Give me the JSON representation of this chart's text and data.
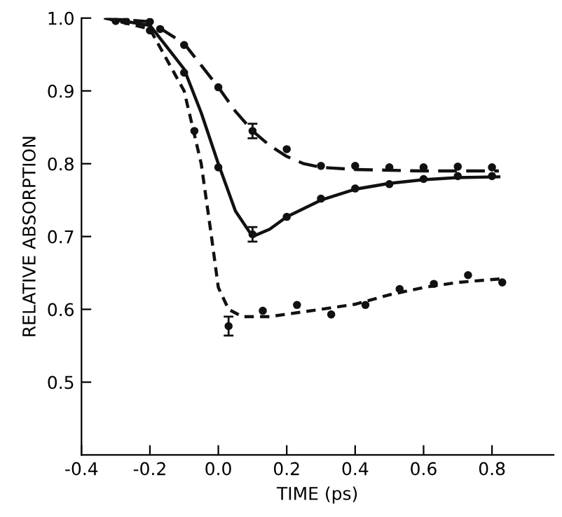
{
  "chart_data": {
    "type": "line",
    "xlabel": "TIME (ps)",
    "ylabel": "RELATIVE ABSORPTION",
    "xlim": [
      -0.4,
      0.98
    ],
    "ylim": [
      0.4,
      1.0
    ],
    "xticks": [
      {
        "value": -0.4,
        "label": "-0.4"
      },
      {
        "value": -0.2,
        "label": "-0.2"
      },
      {
        "value": 0,
        "label": "0.0"
      },
      {
        "value": 0.2,
        "label": "0.2"
      },
      {
        "value": 0.4,
        "label": "0.4"
      },
      {
        "value": 0.6,
        "label": "0.6"
      },
      {
        "value": 0.8,
        "label": "0.8"
      }
    ],
    "yticks": [
      {
        "value": 0.5,
        "label": "0.5"
      },
      {
        "value": 0.6,
        "label": "0.6"
      },
      {
        "value": 0.7,
        "label": "0.7"
      },
      {
        "value": 0.8,
        "label": "0.8"
      },
      {
        "value": 0.9,
        "label": "0.9"
      },
      {
        "value": 1.0,
        "label": "1.0"
      }
    ],
    "grid": false,
    "legend": false,
    "series": [
      {
        "color": "#111111",
        "line_style": "dashed",
        "marker": "none",
        "x": [
          -0.33,
          -0.2,
          -0.1,
          0,
          0.05,
          0.1,
          0.15,
          0.2,
          0.25,
          0.3,
          0.4,
          0.6,
          0.82
        ],
        "values": [
          1.0,
          0.995,
          0.965,
          0.905,
          0.872,
          0.845,
          0.825,
          0.81,
          0.8,
          0.795,
          0.792,
          0.79,
          0.79
        ]
      },
      {
        "color": "#111111",
        "line_style": "solid",
        "marker": "none",
        "x": [
          -0.33,
          -0.2,
          -0.1,
          -0.05,
          0,
          0.05,
          0.1,
          0.15,
          0.2,
          0.3,
          0.4,
          0.5,
          0.6,
          0.7,
          0.82
        ],
        "values": [
          1.0,
          0.99,
          0.93,
          0.87,
          0.8,
          0.735,
          0.7,
          0.71,
          0.727,
          0.75,
          0.765,
          0.773,
          0.778,
          0.781,
          0.782
        ]
      },
      {
        "color": "#111111",
        "line_style": "dotted",
        "marker": "none",
        "x": [
          -0.33,
          -0.2,
          -0.1,
          -0.05,
          -0.02,
          0,
          0.03,
          0.07,
          0.15,
          0.3,
          0.4,
          0.5,
          0.6,
          0.7,
          0.83
        ],
        "values": [
          1.0,
          0.985,
          0.9,
          0.8,
          0.7,
          0.63,
          0.6,
          0.59,
          0.59,
          0.6,
          0.607,
          0.62,
          0.63,
          0.637,
          0.642
        ]
      },
      {
        "type": "scatter",
        "color": "#111111",
        "marker": "circle",
        "x": [
          -0.2,
          -0.1,
          0,
          0.1,
          0.2,
          0.3,
          0.4,
          0.5,
          0.6,
          0.7,
          0.8
        ],
        "values": [
          0.995,
          0.963,
          0.905,
          0.845,
          0.82,
          0.797,
          0.797,
          0.795,
          0.795,
          0.796,
          0.795
        ],
        "errors": [
          null,
          null,
          null,
          0.01,
          null,
          null,
          null,
          null,
          null,
          null,
          null
        ]
      },
      {
        "type": "scatter",
        "color": "#111111",
        "marker": "circle",
        "x": [
          -0.3,
          -0.2,
          -0.1,
          0,
          0.1,
          0.2,
          0.3,
          0.4,
          0.5,
          0.6,
          0.7,
          0.8
        ],
        "values": [
          0.996,
          0.983,
          0.925,
          0.795,
          0.703,
          0.727,
          0.752,
          0.766,
          0.772,
          0.779,
          0.783,
          0.783
        ],
        "errors": [
          null,
          null,
          null,
          null,
          0.01,
          null,
          null,
          null,
          null,
          null,
          null,
          null
        ]
      },
      {
        "type": "scatter",
        "color": "#111111",
        "marker": "circle",
        "x": [
          -0.27,
          -0.17,
          -0.07,
          0.03,
          0.13,
          0.23,
          0.33,
          0.43,
          0.53,
          0.63,
          0.73,
          0.83
        ],
        "values": [
          0.996,
          0.985,
          0.845,
          0.577,
          0.598,
          0.606,
          0.593,
          0.606,
          0.628,
          0.635,
          0.647,
          0.637
        ],
        "errors": [
          null,
          null,
          null,
          0.013,
          null,
          null,
          null,
          null,
          null,
          null,
          null,
          null
        ]
      }
    ]
  }
}
